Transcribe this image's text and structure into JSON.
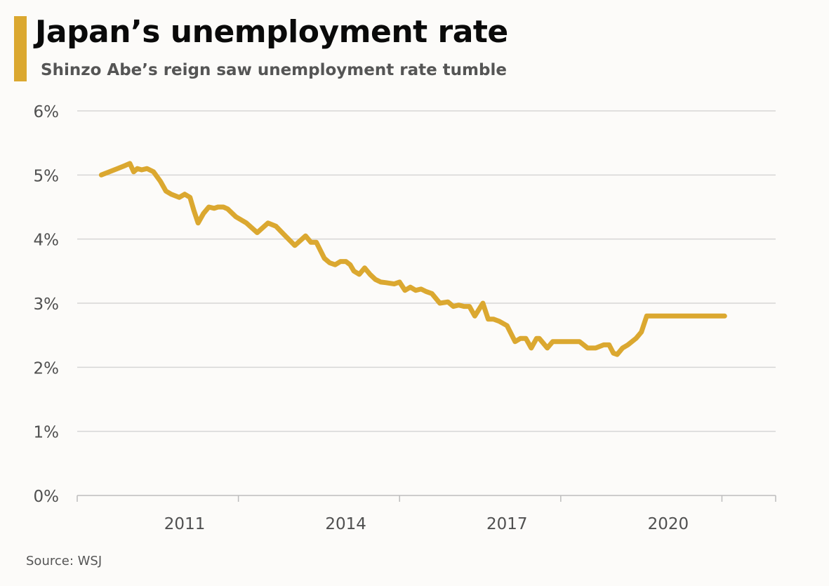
{
  "header": {
    "title": "Japan’s unemployment rate",
    "subtitle": "Shinzo Abe’s reign saw unemployment rate tumble",
    "accent_color": "#dba830"
  },
  "footer": {
    "source": "Source: WSJ"
  },
  "chart_data": {
    "type": "line",
    "title": "Japan’s unemployment rate",
    "subtitle": "Shinzo Abe’s reign saw unemployment rate tumble",
    "xlabel": "",
    "ylabel": "",
    "ylim": [
      0,
      6
    ],
    "xlim": [
      2009.0,
      2022.0
    ],
    "y_ticks": [
      {
        "value": 0,
        "label": "0%"
      },
      {
        "value": 1,
        "label": "1%"
      },
      {
        "value": 2,
        "label": "2%"
      },
      {
        "value": 3,
        "label": "3%"
      },
      {
        "value": 4,
        "label": "4%"
      },
      {
        "value": 5,
        "label": "5%"
      },
      {
        "value": 6,
        "label": "6%"
      }
    ],
    "x_ticks": [
      {
        "value": 2011,
        "label": "2011"
      },
      {
        "value": 2014,
        "label": "2014"
      },
      {
        "value": 2017,
        "label": "2017"
      },
      {
        "value": 2020,
        "label": "2020"
      }
    ],
    "x_axis_ticks": [
      2009.0,
      2012.0,
      2015.0,
      2018.0,
      2021.0,
      2022.0
    ],
    "grid": true,
    "series": [
      {
        "color": "#dba830",
        "x": [
          2009.45,
          2009.6,
          2009.75,
          2009.9,
          2009.98,
          2010.05,
          2010.12,
          2010.2,
          2010.3,
          2010.42,
          2010.55,
          2010.65,
          2010.75,
          2010.9,
          2011.0,
          2011.1,
          2011.17,
          2011.25,
          2011.35,
          2011.45,
          2011.55,
          2011.62,
          2011.72,
          2011.8,
          2011.95,
          2012.15,
          2012.35,
          2012.55,
          2012.7,
          2012.85,
          2013.05,
          2013.25,
          2013.35,
          2013.45,
          2013.6,
          2013.7,
          2013.8,
          2013.9,
          2014.0,
          2014.08,
          2014.15,
          2014.25,
          2014.35,
          2014.45,
          2014.55,
          2014.65,
          2014.75,
          2014.9,
          2015.0,
          2015.1,
          2015.2,
          2015.3,
          2015.4,
          2015.5,
          2015.6,
          2015.75,
          2015.9,
          2016.0,
          2016.1,
          2016.2,
          2016.3,
          2016.4,
          2016.55,
          2016.65,
          2016.75,
          2016.85,
          2017.0,
          2017.15,
          2017.25,
          2017.35,
          2017.45,
          2017.55,
          2017.6,
          2017.65,
          2017.75,
          2017.85,
          2018.0,
          2018.15,
          2018.25,
          2018.35,
          2018.5,
          2018.65,
          2018.8,
          2018.9,
          2018.98,
          2019.05,
          2019.15,
          2019.25,
          2019.4,
          2019.5,
          2019.6,
          2019.7,
          2019.8,
          2019.95,
          2020.05,
          2020.15,
          2020.25,
          2020.35,
          2020.45,
          2020.55,
          2020.65,
          2020.75,
          2020.85,
          2020.9,
          2020.95,
          2021.0,
          2021.05
        ],
        "values": [
          5.0,
          5.05,
          5.1,
          5.15,
          5.18,
          5.05,
          5.1,
          5.08,
          5.1,
          5.05,
          4.9,
          4.75,
          4.7,
          4.65,
          4.7,
          4.65,
          4.45,
          4.25,
          4.4,
          4.5,
          4.48,
          4.5,
          4.5,
          4.47,
          4.35,
          4.25,
          4.1,
          4.25,
          4.2,
          4.07,
          3.9,
          4.05,
          3.95,
          3.95,
          3.7,
          3.63,
          3.6,
          3.65,
          3.65,
          3.6,
          3.5,
          3.45,
          3.55,
          3.45,
          3.37,
          3.33,
          3.32,
          3.3,
          3.33,
          3.2,
          3.25,
          3.2,
          3.22,
          3.18,
          3.15,
          3.0,
          3.02,
          2.95,
          2.97,
          2.95,
          2.95,
          2.8,
          3.0,
          2.75,
          2.75,
          2.72,
          2.65,
          2.4,
          2.45,
          2.45,
          2.3,
          2.45,
          2.45,
          2.4,
          2.3,
          2.4,
          2.4,
          2.4,
          2.4,
          2.4,
          2.3,
          2.3,
          2.35,
          2.35,
          2.22,
          2.2,
          2.3,
          2.35,
          2.45,
          2.55,
          2.8,
          2.8,
          2.8,
          2.8,
          2.8,
          2.8,
          2.8,
          2.8,
          2.8,
          2.8,
          2.8,
          2.8,
          2.8,
          2.8,
          2.8,
          2.8,
          2.8
        ]
      }
    ]
  }
}
